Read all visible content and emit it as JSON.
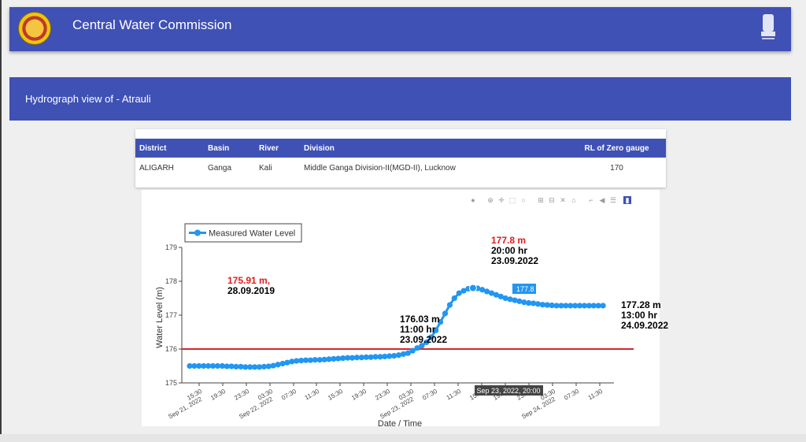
{
  "header": {
    "title": "Central Water Commission",
    "logo_icon": "cwc-logo-icon",
    "emblem_icon": "national-emblem-icon"
  },
  "section": {
    "title": "Hydrograph view of - Atrauli"
  },
  "info_table": {
    "headers": [
      "District",
      "Basin",
      "River",
      "Division",
      "RL of Zero gauge"
    ],
    "row": [
      "ALIGARH",
      "Ganga",
      "Kali",
      "Middle Ganga Division-II(MGD-II), Lucknow",
      "170"
    ]
  },
  "modebar": [
    "camera-icon",
    "zoom-icon",
    "pan-icon",
    "box-select-icon",
    "lasso-icon",
    "zoom-in-icon",
    "zoom-out-icon",
    "autoscale-icon",
    "reset-axes-icon",
    "spike-lines-icon",
    "hover-closest-icon",
    "hover-compare-icon",
    "plotly-logo-icon"
  ],
  "colors": {
    "primary": "#3f51b5",
    "series": "#2196f3",
    "danger_line": "#d62728",
    "hfl_text": "#e31a1c"
  },
  "chart_data": {
    "type": "line",
    "title": "",
    "xlabel": "Date / Time",
    "ylabel": "Water Level (m)",
    "ylim": [
      175,
      179
    ],
    "yticks": [
      "175",
      "176",
      "177",
      "178",
      "179"
    ],
    "xticks": [
      "15:30",
      "Sep 21, 2022",
      "19:30",
      "23:30",
      "03:30",
      "Sep 22, 2022",
      "07:30",
      "11:30",
      "15:30",
      "19:30",
      "23:30",
      "03:30",
      "Sep 23, 2022",
      "07:30",
      "11:30",
      "15:30",
      "19:30",
      "23:30",
      "03:30",
      "Sep 24, 2022",
      "07:30",
      "11:30"
    ],
    "legend": {
      "label": "Measured Water Level",
      "position": "top-left"
    },
    "danger_level": 176,
    "series": [
      {
        "name": "Measured Water Level",
        "x_hours": [
          0,
          1,
          2,
          3,
          4,
          5,
          6,
          7,
          8,
          9,
          10,
          11,
          12,
          13,
          14,
          15,
          16,
          17,
          18,
          19,
          20,
          21,
          22,
          23,
          24,
          25,
          26,
          27,
          28,
          29,
          30,
          31,
          32,
          33,
          34,
          35,
          36,
          37,
          38,
          39,
          40,
          41,
          42,
          43,
          44,
          45,
          46,
          47,
          48,
          49,
          50,
          51,
          52,
          53,
          54,
          55,
          56,
          57,
          58,
          59,
          60,
          61,
          62,
          63,
          64,
          65,
          66,
          67,
          68,
          69,
          70,
          71,
          72,
          73,
          74,
          75,
          76,
          77,
          78,
          79,
          80,
          81,
          82,
          83,
          84,
          85,
          86,
          87,
          88,
          89
        ],
        "values": [
          175.5,
          175.5,
          175.5,
          175.5,
          175.5,
          175.5,
          175.5,
          175.5,
          175.49,
          175.49,
          175.48,
          175.48,
          175.47,
          175.47,
          175.47,
          175.47,
          175.48,
          175.49,
          175.51,
          175.54,
          175.57,
          175.6,
          175.63,
          175.65,
          175.66,
          175.67,
          175.67,
          175.68,
          175.68,
          175.69,
          175.7,
          175.71,
          175.72,
          175.73,
          175.74,
          175.74,
          175.75,
          175.75,
          175.76,
          175.76,
          175.77,
          175.77,
          175.78,
          175.79,
          175.8,
          175.82,
          175.85,
          175.88,
          175.95,
          176.03,
          176.1,
          176.2,
          176.35,
          176.55,
          176.8,
          177.05,
          177.3,
          177.5,
          177.65,
          177.72,
          177.78,
          177.8,
          177.79,
          177.75,
          177.7,
          177.65,
          177.6,
          177.55,
          177.5,
          177.47,
          177.44,
          177.41,
          177.38,
          177.36,
          177.35,
          177.33,
          177.31,
          177.3,
          177.29,
          177.28,
          177.28,
          177.28,
          177.28,
          177.28,
          177.28,
          177.28,
          177.28,
          177.28,
          177.28,
          177.28
        ]
      }
    ],
    "annotations": [
      {
        "lines": [
          "175.91 m,",
          "28.09.2019"
        ],
        "colors": [
          "#e31a1c",
          "#000000"
        ]
      },
      {
        "lines": [
          "177.8 m",
          "20:00 hr",
          "23.09.2022"
        ],
        "colors": [
          "#e31a1c",
          "#000000",
          "#000000"
        ]
      },
      {
        "lines": [
          "176.03 m",
          "11:00 hr",
          "23.09.2022"
        ],
        "colors": [
          "#000000",
          "#000000",
          "#000000"
        ]
      },
      {
        "lines": [
          "177.28 m",
          "13:00 hr",
          "24.09.2022"
        ],
        "colors": [
          "#000000",
          "#000000",
          "#000000"
        ]
      }
    ],
    "hover": {
      "value_label": "177.8",
      "x_label": "Sep 23, 2022, 20:00"
    }
  }
}
